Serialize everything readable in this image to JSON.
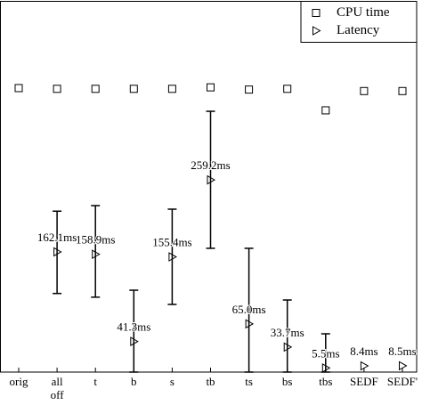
{
  "chart_data": {
    "type": "scatter",
    "categories": [
      "orig",
      "all off",
      "t",
      "b",
      "s",
      "tb",
      "ts",
      "bs",
      "tbs",
      "SEDF",
      "SEDF'"
    ],
    "ylim": [
      0,
      500
    ],
    "legend": "upper right",
    "series": [
      {
        "name": "CPU time",
        "color": "#000000",
        "marker": "square",
        "values": [
          383,
          382,
          382,
          382,
          382,
          384,
          381,
          382,
          353,
          379,
          379
        ]
      },
      {
        "name": "Latency",
        "color": "#000000",
        "marker": "triangle",
        "values": [
          null,
          162.1,
          158.9,
          41.3,
          155.4,
          259.2,
          65.0,
          33.7,
          5.5,
          8.4,
          8.5
        ],
        "value_labels": [
          null,
          "162.1ms",
          "158.9ms",
          "41.3ms",
          "155.4ms",
          "259.2ms",
          "65.0ms",
          "33.7ms",
          "5.5ms",
          "8.4ms",
          "8.5ms"
        ],
        "low": [
          null,
          106,
          101,
          0,
          91.2,
          166.9,
          0,
          0,
          0,
          null,
          null
        ],
        "high": [
          null,
          217,
          224.5,
          110.4,
          219.7,
          351.7,
          166.9,
          97.2,
          51.6,
          null,
          null
        ]
      }
    ]
  }
}
